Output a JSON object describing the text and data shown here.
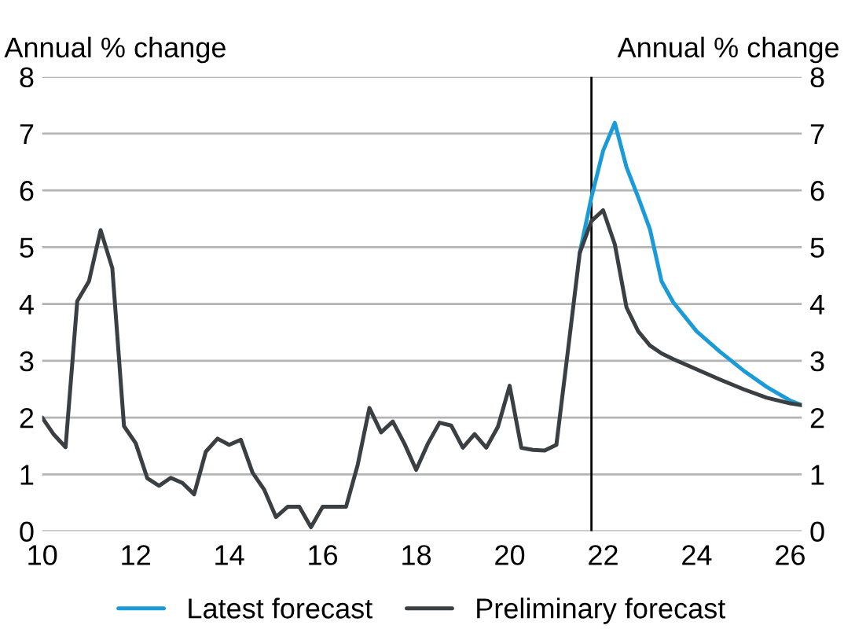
{
  "chart_data": {
    "type": "line",
    "ylabel": "Annual % change",
    "y2label": "Annual % change",
    "xlim": [
      10,
      26.25
    ],
    "xticks": [
      10,
      12,
      14,
      16,
      18,
      20,
      22,
      24,
      26
    ],
    "ylim": [
      0,
      8
    ],
    "yticks": [
      0,
      1,
      2,
      3,
      4,
      5,
      6,
      7,
      8
    ],
    "y2lim": [
      0,
      8
    ],
    "y2ticks": [
      0,
      1,
      2,
      3,
      4,
      5,
      6,
      7,
      8
    ],
    "grid": "y",
    "legend": "bottom",
    "line_style": "solid",
    "marker": "none",
    "ref_lines": [
      {
        "axis": "x",
        "value": 21.75,
        "color": "#000000"
      }
    ],
    "series": [
      {
        "name": "Latest forecast",
        "color": "#1a9bd7",
        "x": [
          21.5,
          21.75,
          22,
          22.25,
          22.5,
          22.75,
          23,
          23.25,
          23.5,
          24,
          24.5,
          25,
          25.5,
          26,
          26.25
        ],
        "values": [
          4.9,
          5.88,
          6.7,
          7.19,
          6.41,
          5.88,
          5.32,
          4.4,
          4.03,
          3.52,
          3.16,
          2.83,
          2.54,
          2.3,
          2.22
        ]
      },
      {
        "name": "Preliminary forecast",
        "color": "#3a3f44",
        "x": [
          10,
          10.25,
          10.5,
          10.75,
          11,
          11.25,
          11.5,
          11.75,
          12,
          12.25,
          12.5,
          12.75,
          13,
          13.25,
          13.5,
          13.75,
          14,
          14.25,
          14.5,
          14.75,
          15,
          15.25,
          15.5,
          15.75,
          16,
          16.25,
          16.5,
          16.75,
          17,
          17.25,
          17.5,
          17.75,
          18,
          18.25,
          18.5,
          18.75,
          19,
          19.25,
          19.5,
          19.75,
          20,
          20.25,
          20.5,
          20.75,
          21,
          21.25,
          21.5,
          21.75,
          22,
          22.25,
          22.5,
          22.75,
          23,
          23.25,
          23.5,
          24,
          24.5,
          25,
          25.5,
          26,
          26.25
        ],
        "values": [
          2.0,
          1.7,
          1.48,
          4.05,
          4.4,
          5.3,
          4.63,
          1.85,
          1.55,
          0.93,
          0.8,
          0.94,
          0.85,
          0.65,
          1.4,
          1.63,
          1.52,
          1.61,
          1.03,
          0.73,
          0.25,
          0.43,
          0.43,
          0.07,
          0.43,
          0.43,
          0.43,
          1.17,
          2.17,
          1.74,
          1.93,
          1.54,
          1.08,
          1.54,
          1.91,
          1.86,
          1.47,
          1.71,
          1.47,
          1.84,
          2.56,
          1.47,
          1.43,
          1.42,
          1.52,
          3.2,
          4.9,
          5.46,
          5.65,
          5.05,
          3.94,
          3.52,
          3.27,
          3.13,
          3.03,
          2.85,
          2.67,
          2.5,
          2.35,
          2.25,
          2.22
        ]
      }
    ]
  }
}
